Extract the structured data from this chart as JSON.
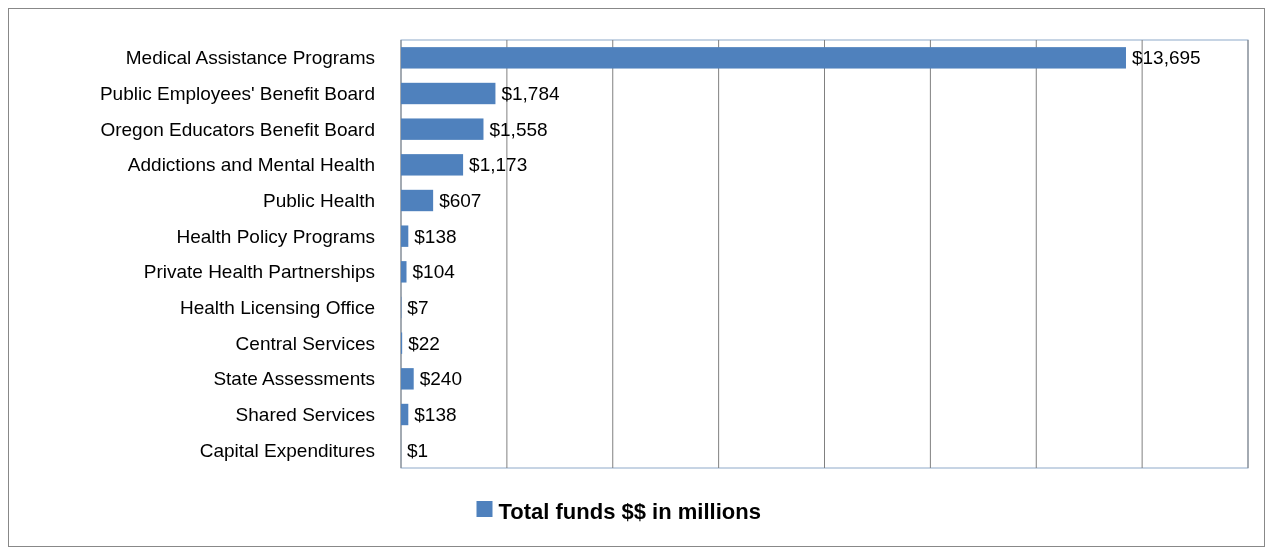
{
  "chart_data": {
    "type": "bar",
    "orientation": "horizontal",
    "categories": [
      "Medical Assistance Programs",
      "Public Employees' Benefit Board",
      "Oregon Educators Benefit Board",
      "Addictions and Mental Health",
      "Public Health",
      "Health Policy Programs",
      "Private Health Partnerships",
      "Health Licensing Office",
      "Central Services",
      "State Assessments",
      "Shared Services",
      "Capital Expenditures"
    ],
    "series": [
      {
        "name": "Total funds $$ in millions",
        "color": "#4f81bd",
        "values": [
          13695,
          1784,
          1558,
          1173,
          607,
          138,
          104,
          7,
          22,
          240,
          138,
          1
        ],
        "value_labels": [
          "$13,695",
          "$1,784",
          "$1,558",
          "$1,173",
          "$607",
          "$138",
          "$104",
          "$7",
          "$22",
          "$240",
          "$138",
          "$1"
        ]
      }
    ],
    "xlim": [
      0,
      16000
    ],
    "xticks": [
      {
        "value": 0,
        "label": null
      },
      {
        "value": 2000,
        "label": null
      },
      {
        "value": 4000,
        "label": null
      },
      {
        "value": 6000,
        "label": null
      },
      {
        "value": 8000,
        "label": null
      },
      {
        "value": 10000,
        "label": null
      },
      {
        "value": 12000,
        "label": null
      },
      {
        "value": 14000,
        "label": null
      },
      {
        "value": 16000,
        "label": null
      }
    ],
    "tick_labels": "y",
    "grid": "x",
    "legend": "bottom"
  }
}
